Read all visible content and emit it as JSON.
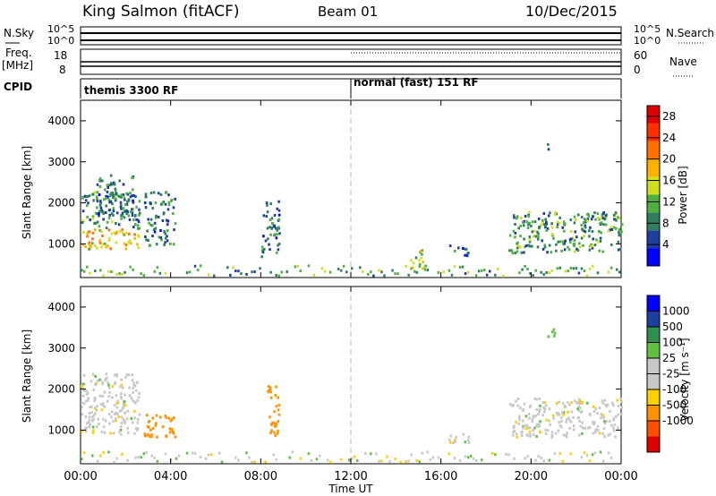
{
  "header": {
    "station": "King Salmon (fitACF)",
    "beam": "Beam 01",
    "date": "10/Dec/2015"
  },
  "top_panel": {
    "left_label": "N.Sky",
    "right_label": "N.Search",
    "left_ticks": [
      "10^5",
      "10^0"
    ],
    "right_ticks": [
      "10^5",
      "10^0"
    ]
  },
  "freq_panel": {
    "left_label_1": "Freq.",
    "left_label_2": "[MHz]",
    "right_label": "Nave",
    "left_ticks": [
      "18",
      "8"
    ],
    "right_ticks": [
      "60",
      "0"
    ]
  },
  "cpid_panel": {
    "label": "CPID",
    "modes": [
      "themis 3300 RF",
      "normal (fast) 151 RF"
    ]
  },
  "xaxis": {
    "label": "Time UT",
    "ticks": [
      "00:00",
      "04:00",
      "08:00",
      "12:00",
      "16:00",
      "20:00",
      "00:00"
    ]
  },
  "colors": {
    "power": [
      "#0000ff",
      "#1f3f9f",
      "#2f7f5f",
      "#4faf3f",
      "#cfdf1f",
      "#ffb000",
      "#ff7000",
      "#ff3000",
      "#e00000"
    ],
    "velocity": [
      "#e00000",
      "#ff5000",
      "#ff9000",
      "#ffd000",
      "#c8c8c8",
      "#c8c8c8",
      "#60c040",
      "#2f8f4f",
      "#1f3fa0",
      "#0000ff"
    ]
  },
  "chart_data": [
    {
      "type": "heatmap",
      "title": "Power",
      "xlabel": "Time UT",
      "ylabel": "Slant Range [km]",
      "xlim": [
        0,
        24
      ],
      "ylim": [
        180,
        4500
      ],
      "yticks": [
        "1000",
        "2000",
        "3000",
        "4000"
      ],
      "colorbar": {
        "label": "Power [dB]",
        "ticks": [
          "4",
          "8",
          "12",
          "16",
          "20",
          "24",
          "28"
        ],
        "range": [
          0,
          30
        ]
      },
      "regions": [
        {
          "t0": 0.0,
          "t1": 2.6,
          "r0": 900,
          "r1": 1400,
          "value": 18
        },
        {
          "t0": 0.0,
          "t1": 2.6,
          "r0": 1400,
          "r1": 2300,
          "value": 9
        },
        {
          "t0": 0.6,
          "t1": 2.4,
          "r0": 1700,
          "r1": 2700,
          "value": 8
        },
        {
          "t0": 2.8,
          "t1": 4.2,
          "r0": 950,
          "r1": 2300,
          "value": 8
        },
        {
          "t0": 8.0,
          "t1": 8.8,
          "r0": 700,
          "r1": 2100,
          "value": 8
        },
        {
          "t0": 14.6,
          "t1": 15.4,
          "r0": 350,
          "r1": 900,
          "value": 14
        },
        {
          "t0": 16.3,
          "t1": 17.2,
          "r0": 700,
          "r1": 1000,
          "value": 7
        },
        {
          "t0": 20.7,
          "t1": 21.1,
          "r0": 3250,
          "r1": 3500,
          "value": 8
        },
        {
          "t0": 19.0,
          "t1": 24.0,
          "r0": 800,
          "r1": 1800,
          "value": 10
        }
      ]
    },
    {
      "type": "heatmap",
      "title": "Velocity",
      "xlabel": "Time UT",
      "ylabel": "Slant Range [km]",
      "xlim": [
        0,
        24
      ],
      "ylim": [
        180,
        4500
      ],
      "yticks": [
        "1000",
        "2000",
        "3000",
        "4000"
      ],
      "colorbar": {
        "label": "Velocity [m s⁻¹]",
        "ticks": [
          "1000",
          "500",
          "100",
          "25",
          "-25",
          "-100",
          "-500",
          "-1000"
        ]
      },
      "regions": [
        {
          "t0": 0.0,
          "t1": 2.6,
          "r0": 900,
          "r1": 2400,
          "value": 0
        },
        {
          "t0": 2.8,
          "t1": 4.2,
          "r0": 850,
          "r1": 1400,
          "value": -300
        },
        {
          "t0": 8.2,
          "t1": 8.8,
          "r0": 900,
          "r1": 2100,
          "value": -300
        },
        {
          "t0": 16.3,
          "t1": 17.2,
          "r0": 700,
          "r1": 1000,
          "value": 0
        },
        {
          "t0": 19.0,
          "t1": 24.0,
          "r0": 850,
          "r1": 1800,
          "value": 0
        },
        {
          "t0": 20.7,
          "t1": 21.1,
          "r0": 3250,
          "r1": 3500,
          "value": 60
        }
      ]
    }
  ]
}
